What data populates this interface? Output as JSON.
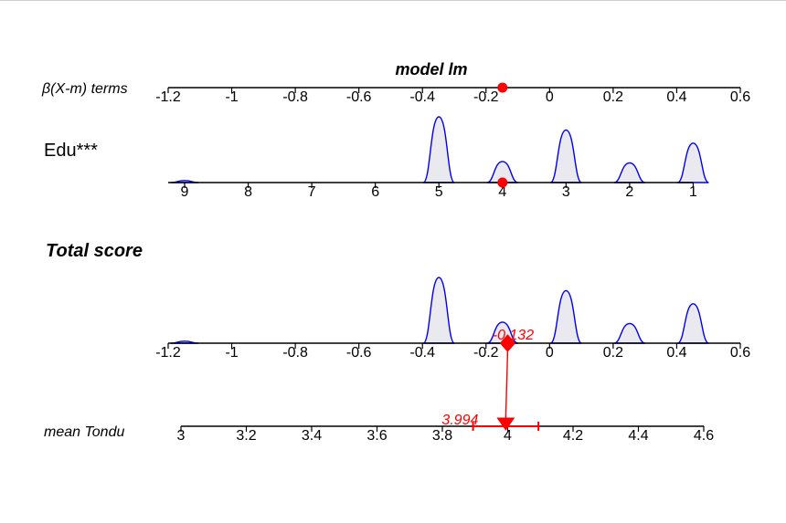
{
  "chart_data": {
    "type": "nomogram",
    "title": "model lm",
    "scale_label": "β(X-m) terms",
    "scale_ticks": [
      "-1.2",
      "-1",
      "-0.8",
      "-0.6",
      "-0.4",
      "-0.2",
      "0",
      "0.2",
      "0.4",
      "0.6"
    ],
    "scale_values": [
      -1.2,
      -1.0,
      -0.8,
      -0.6,
      -0.4,
      -0.2,
      0.0,
      0.2,
      0.4,
      0.6
    ],
    "edu": {
      "label": "Edu***",
      "ticks": [
        "9",
        "8",
        "7",
        "6",
        "5",
        "4",
        "3",
        "2",
        "1"
      ],
      "values": [
        9,
        8,
        7,
        6,
        5,
        4,
        3,
        2,
        1
      ],
      "beta_at_value": [
        -1.2,
        -1.0,
        -0.8,
        -0.6,
        -0.4,
        -0.2,
        0.0,
        0.2,
        0.4
      ],
      "density_peaks": [
        {
          "level": 9,
          "height": 0.03
        },
        {
          "level": 5,
          "height": 1.0
        },
        {
          "level": 4,
          "height": 0.32
        },
        {
          "level": 3,
          "height": 0.8
        },
        {
          "level": 2,
          "height": 0.3
        },
        {
          "level": 1,
          "height": 0.6
        }
      ],
      "selected_level": 4
    },
    "total": {
      "label": "Total score",
      "ticks": [
        "-1.2",
        "-1",
        "-0.8",
        "-0.6",
        "-0.4",
        "-0.2",
        "0",
        "0.2",
        "0.4",
        "0.6"
      ],
      "values": [
        -1.2,
        -1.0,
        -0.8,
        -0.6,
        -0.4,
        -0.2,
        0.0,
        0.2,
        0.4,
        0.6
      ],
      "score": -0.132,
      "score_label": "-0.132"
    },
    "outcome": {
      "label": "mean Tondu",
      "ticks": [
        "3",
        "3.2",
        "3.4",
        "3.6",
        "3.8",
        "4",
        "4.2",
        "4.4",
        "4.6"
      ],
      "values": [
        3.0,
        3.2,
        3.4,
        3.6,
        3.8,
        4.0,
        4.2,
        4.4,
        4.6
      ],
      "prediction": 3.994,
      "prediction_label": "3.994",
      "ci": [
        3.894,
        4.094
      ]
    },
    "colors": {
      "axis": "#000000",
      "density_stroke": "#0000ee",
      "density_fill": "#e9e9ef",
      "highlight": "#ff0000"
    }
  }
}
